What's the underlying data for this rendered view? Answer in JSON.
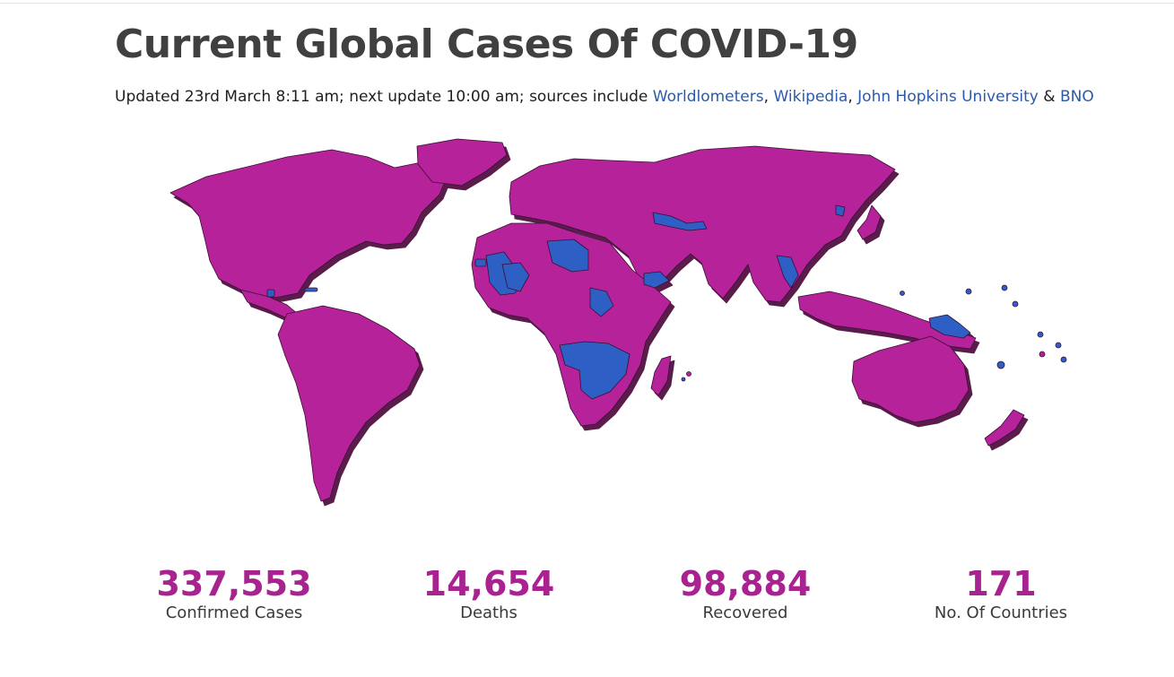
{
  "page": {
    "title": "Current Global Cases Of COVID-19",
    "updated_text": "Updated 23rd March 8:11 am; next update 10:00 am; sources include",
    "sources": [
      {
        "label": "Worldlometers"
      },
      {
        "label": "Wikipedia"
      },
      {
        "label": "John Hopkins University"
      },
      {
        "label": "BNO"
      }
    ],
    "sep_comma": ",",
    "sep_amp": "&"
  },
  "map": {
    "colors": {
      "affected": "#b5219a",
      "unaffected": "#2d5fc4",
      "shadow": "#5a1a4c",
      "border": "#3b0f33"
    }
  },
  "stats": [
    {
      "value": "337,553",
      "label": "Confirmed Cases"
    },
    {
      "value": "14,654",
      "label": "Deaths"
    },
    {
      "value": "98,884",
      "label": "Recovered"
    },
    {
      "value": "171",
      "label": "No. Of Countries"
    }
  ]
}
